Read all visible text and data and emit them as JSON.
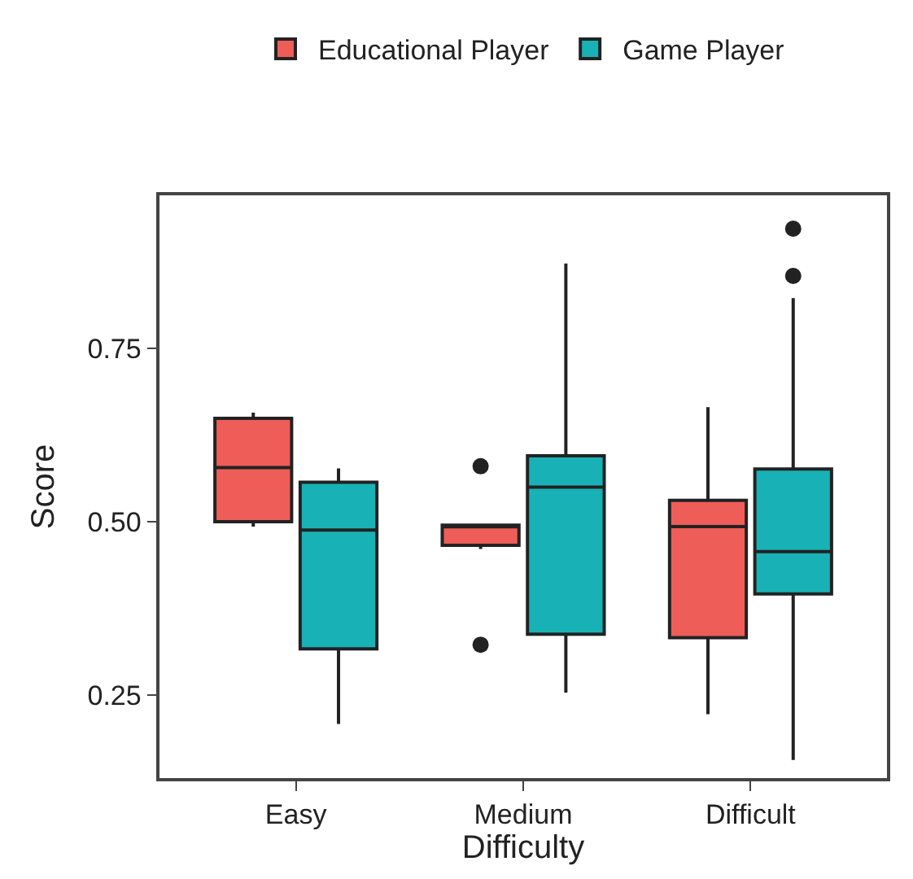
{
  "chart_data": {
    "type": "box",
    "xlabel": "Difficulty",
    "ylabel": "Score",
    "categories": [
      "Easy",
      "Medium",
      "Difficult"
    ],
    "ylim": [
      0.131,
      0.97
    ],
    "yticks": [
      0.25,
      {
        "value": 0.5,
        "label": "0.50"
      },
      0.75
    ],
    "legend": "top",
    "series": [
      {
        "name": "Educational Player",
        "color": "#ef5d58",
        "boxes": [
          {
            "low": 0.493,
            "q1": 0.5,
            "median": 0.578,
            "q3": 0.649,
            "high": 0.657
          },
          {
            "low": 0.461,
            "q1": 0.466,
            "median": 0.493,
            "q3": 0.495,
            "high": 0.495,
            "outliers": [
              0.58,
              0.323
            ]
          },
          {
            "low": 0.223,
            "q1": 0.333,
            "median": 0.493,
            "q3": 0.531,
            "high": 0.665
          }
        ]
      },
      {
        "name": "Game Player",
        "color": "#18b2b6",
        "boxes": [
          {
            "low": 0.209,
            "q1": 0.317,
            "median": 0.488,
            "q3": 0.557,
            "high": 0.577
          },
          {
            "low": 0.254,
            "q1": 0.338,
            "median": 0.55,
            "q3": 0.595,
            "high": 0.872
          },
          {
            "low": 0.157,
            "q1": 0.396,
            "median": 0.457,
            "q3": 0.576,
            "high": 0.822,
            "outliers": [
              0.922,
              0.854
            ]
          }
        ]
      }
    ]
  }
}
